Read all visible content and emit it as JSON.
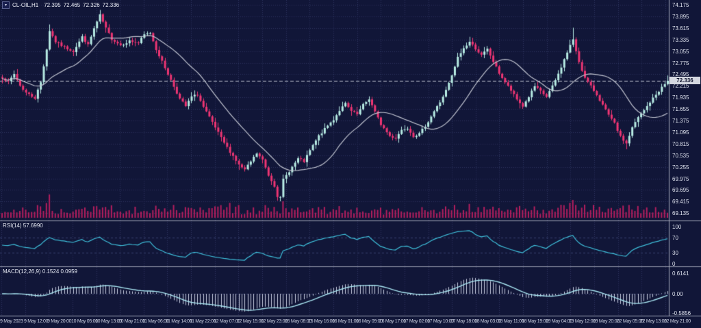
{
  "header": {
    "symbol": "CL-OIL,H1",
    "open": "72.395",
    "high": "72.465",
    "low": "72.326",
    "close": "72.336"
  },
  "price_axis": {
    "ticks": [
      "74.175",
      "73.895",
      "73.615",
      "73.335",
      "73.055",
      "72.775",
      "72.495",
      "72.215",
      "71.935",
      "71.655",
      "71.375",
      "71.095",
      "70.815",
      "70.535",
      "70.255",
      "69.975",
      "69.695",
      "69.415",
      "69.135"
    ],
    "current": "72.336"
  },
  "time_axis": {
    "labels": [
      "9 May 2023",
      "9 May 12:00",
      "9 May 20:00",
      "10 May 05:00",
      "10 May 13:00",
      "10 May 21:00",
      "11 May 06:00",
      "11 May 14:00",
      "11 May 22:00",
      "12 May 07:00",
      "12 May 15:00",
      "12 May 23:00",
      "15 May 08:00",
      "15 May 16:00",
      "16 May 01:00",
      "16 May 09:00",
      "16 May 17:00",
      "17 May 02:00",
      "17 May 10:00",
      "17 May 18:00",
      "18 May 03:00",
      "18 May 11:00",
      "18 May 19:00",
      "19 May 04:00",
      "19 May 12:00",
      "19 May 20:00",
      "22 May 05:00",
      "22 May 13:00",
      "22 May 21:00"
    ]
  },
  "rsi_panel": {
    "label": "RSI(14)",
    "value": "57.6990",
    "levels": [
      "100",
      "70",
      "30",
      "0"
    ]
  },
  "macd_panel": {
    "label": "MACD(12,26,9)",
    "values": "0.1524 0.0959",
    "axis": [
      "0.6141",
      "0.00",
      "-0.5856"
    ]
  },
  "colors": {
    "background": "#111638",
    "grid": "#2c355f",
    "bull_candle": "#b7ece4",
    "bear_candle": "#ee3573",
    "volume": "#b51e5e",
    "ma_line": "#c2c5d1",
    "rsi_line": "#3fc1dc",
    "macd_signal": "#a9e6f2",
    "macd_histogram": "#c9cfe2",
    "separator": "#9fa3b5",
    "price_line": "#c8cdd9",
    "axis_text": "#dfe3ee",
    "badge_bg": "#d4d7e0",
    "badge_text": "#10142e"
  },
  "chart_data": {
    "type": "candlestick",
    "title": "CL-OIL,H1 72.395 72.465 72.326 72.336",
    "symbol": "CL-OIL",
    "timeframe": "H1",
    "last_bar": {
      "open": 72.395,
      "high": 72.465,
      "low": 72.326,
      "close": 72.336
    },
    "price_range": [
      69.135,
      74.175
    ],
    "price_tick_step": 0.28,
    "candle_count": 226,
    "close_waypoints": [
      [
        0,
        72.42
      ],
      [
        2,
        72.3
      ],
      [
        4,
        72.5
      ],
      [
        6,
        72.22
      ],
      [
        8,
        72.05
      ],
      [
        11,
        71.92
      ],
      [
        13,
        72.3
      ],
      [
        15,
        73.1
      ],
      [
        16,
        73.55
      ],
      [
        18,
        73.28
      ],
      [
        21,
        73.15
      ],
      [
        24,
        73.05
      ],
      [
        27,
        73.4
      ],
      [
        29,
        73.2
      ],
      [
        31,
        73.6
      ],
      [
        33,
        73.92
      ],
      [
        35,
        73.6
      ],
      [
        37,
        73.35
      ],
      [
        40,
        73.2
      ],
      [
        43,
        73.3
      ],
      [
        46,
        73.25
      ],
      [
        48,
        73.45
      ],
      [
        50,
        73.5
      ],
      [
        52,
        73.1
      ],
      [
        54,
        72.8
      ],
      [
        56,
        72.5
      ],
      [
        58,
        72.2
      ],
      [
        60,
        71.9
      ],
      [
        62,
        71.72
      ],
      [
        64,
        71.95
      ],
      [
        66,
        72.0
      ],
      [
        68,
        71.7
      ],
      [
        70,
        71.45
      ],
      [
        72,
        71.2
      ],
      [
        74,
        70.95
      ],
      [
        76,
        70.72
      ],
      [
        78,
        70.52
      ],
      [
        80,
        70.3
      ],
      [
        82,
        70.18
      ],
      [
        84,
        70.38
      ],
      [
        86,
        70.58
      ],
      [
        88,
        70.42
      ],
      [
        90,
        70.05
      ],
      [
        92,
        69.8
      ],
      [
        93,
        69.55
      ],
      [
        94,
        69.5
      ],
      [
        95,
        69.95
      ],
      [
        97,
        70.15
      ],
      [
        100,
        70.45
      ],
      [
        102,
        70.38
      ],
      [
        104,
        70.65
      ],
      [
        107,
        71.0
      ],
      [
        110,
        71.25
      ],
      [
        112,
        71.4
      ],
      [
        114,
        71.62
      ],
      [
        116,
        71.78
      ],
      [
        118,
        71.6
      ],
      [
        120,
        71.52
      ],
      [
        122,
        71.75
      ],
      [
        124,
        71.9
      ],
      [
        126,
        71.58
      ],
      [
        128,
        71.28
      ],
      [
        131,
        71.0
      ],
      [
        133,
        70.95
      ],
      [
        135,
        71.15
      ],
      [
        137,
        71.2
      ],
      [
        139,
        71.0
      ],
      [
        141,
        71.05
      ],
      [
        144,
        71.35
      ],
      [
        146,
        71.6
      ],
      [
        148,
        71.82
      ],
      [
        150,
        72.1
      ],
      [
        152,
        72.45
      ],
      [
        154,
        72.9
      ],
      [
        156,
        73.12
      ],
      [
        158,
        73.28
      ],
      [
        160,
        73.12
      ],
      [
        162,
        72.95
      ],
      [
        164,
        73.1
      ],
      [
        166,
        72.8
      ],
      [
        168,
        72.52
      ],
      [
        170,
        72.3
      ],
      [
        172,
        72.1
      ],
      [
        174,
        71.88
      ],
      [
        176,
        71.72
      ],
      [
        178,
        71.95
      ],
      [
        180,
        72.2
      ],
      [
        182,
        72.08
      ],
      [
        184,
        71.95
      ],
      [
        186,
        72.2
      ],
      [
        188,
        72.5
      ],
      [
        190,
        72.85
      ],
      [
        192,
        73.2
      ],
      [
        193,
        73.32
      ],
      [
        195,
        72.8
      ],
      [
        197,
        72.4
      ],
      [
        199,
        72.2
      ],
      [
        201,
        72.0
      ],
      [
        203,
        71.75
      ],
      [
        205,
        71.5
      ],
      [
        207,
        71.3
      ],
      [
        209,
        70.98
      ],
      [
        211,
        70.82
      ],
      [
        213,
        71.2
      ],
      [
        215,
        71.45
      ],
      [
        217,
        71.62
      ],
      [
        219,
        71.82
      ],
      [
        221,
        72.0
      ],
      [
        223,
        72.18
      ],
      [
        225,
        72.336
      ]
    ],
    "wick_events": [
      {
        "i": 16,
        "high": 73.7
      },
      {
        "i": 33,
        "high": 74.05
      },
      {
        "i": 94,
        "low": 69.42
      },
      {
        "i": 193,
        "high": 73.62
      },
      {
        "i": 211,
        "low": 70.68
      },
      {
        "i": 225,
        "high": 72.465,
        "low": 72.326
      }
    ],
    "indicators": {
      "ma": {
        "type": "SMA",
        "period": 20
      },
      "rsi": {
        "period": 14,
        "last": 57.699,
        "levels": [
          100,
          70,
          30,
          0
        ]
      },
      "macd": {
        "fast": 12,
        "slow": 26,
        "signal": 9,
        "last_macd": 0.1524,
        "last_signal": 0.0959,
        "axis_max": 0.6141,
        "axis_min": -0.5856
      }
    },
    "legend_position": "none",
    "grid": true
  }
}
